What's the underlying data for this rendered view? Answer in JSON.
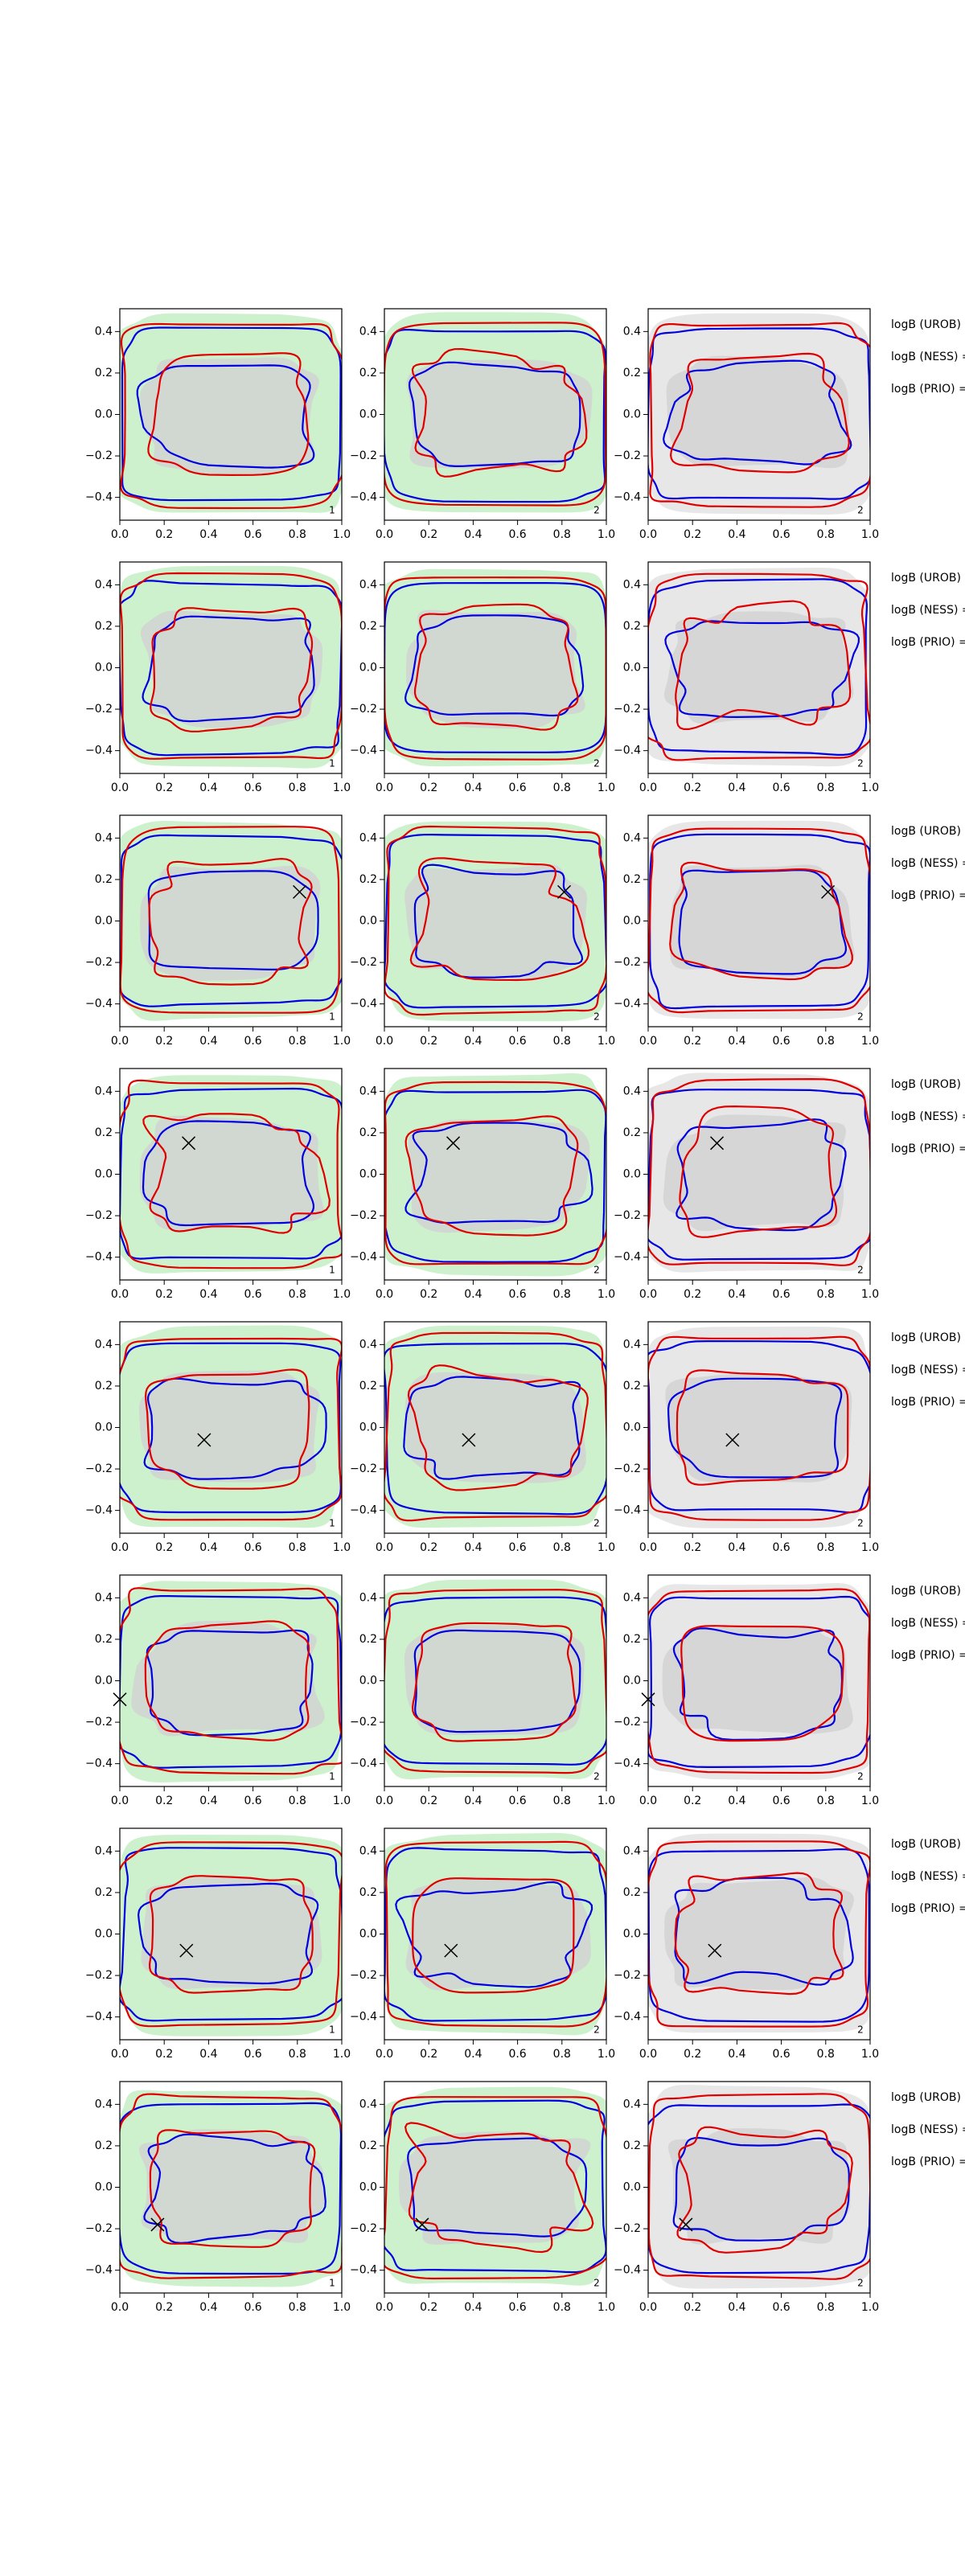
{
  "chart_data": {
    "type": "contour",
    "xlim": [
      0,
      1
    ],
    "ylim": [
      -0.51,
      0.51
    ],
    "xticks": [
      {
        "value": 0,
        "label": "0.0"
      },
      0.2,
      0.4,
      0.6,
      0.8,
      {
        "value": 1,
        "label": "1.0"
      }
    ],
    "yticks": [
      {
        "value": -0.4,
        "label": "−0.4"
      },
      {
        "value": -0.2,
        "label": "−0.2"
      },
      {
        "value": 0,
        "label": "0.0"
      },
      0.2,
      0.4
    ],
    "side_labels": [
      "logB (UROB) =",
      "logB (NESS) =",
      "logB (PRIO) ="
    ],
    "panels": [
      {
        "label": "1"
      },
      {
        "label": "2"
      },
      {
        "label": "2"
      },
      {
        "label": "1"
      },
      {
        "label": "2"
      },
      {
        "label": "2"
      },
      {
        "label": "1",
        "marker": [
          0.81,
          0.14
        ]
      },
      {
        "label": "2",
        "marker": [
          0.81,
          0.14
        ]
      },
      {
        "label": "2",
        "marker": [
          0.81,
          0.14
        ]
      },
      {
        "label": "1",
        "marker": [
          0.31,
          0.15
        ]
      },
      {
        "label": "2",
        "marker": [
          0.31,
          0.15
        ]
      },
      {
        "label": "2",
        "marker": [
          0.31,
          0.15
        ]
      },
      {
        "label": "1",
        "marker": [
          0.38,
          -0.06
        ]
      },
      {
        "label": "2",
        "marker": [
          0.38,
          -0.06
        ]
      },
      {
        "label": "2",
        "marker": [
          0.38,
          -0.06
        ]
      },
      {
        "label": "1",
        "marker": [
          0.0,
          -0.09
        ]
      },
      {
        "label": "2"
      },
      {
        "label": "2",
        "marker": [
          0.0,
          -0.09
        ]
      },
      {
        "label": "1",
        "marker": [
          0.3,
          -0.08
        ]
      },
      {
        "label": "2",
        "marker": [
          0.3,
          -0.08
        ]
      },
      {
        "label": "2",
        "marker": [
          0.3,
          -0.08
        ]
      },
      {
        "label": "1",
        "marker": [
          0.17,
          -0.18
        ]
      },
      {
        "label": "2",
        "marker": [
          0.17,
          -0.18
        ]
      },
      {
        "label": "2",
        "marker": [
          0.17,
          -0.18
        ]
      }
    ]
  }
}
